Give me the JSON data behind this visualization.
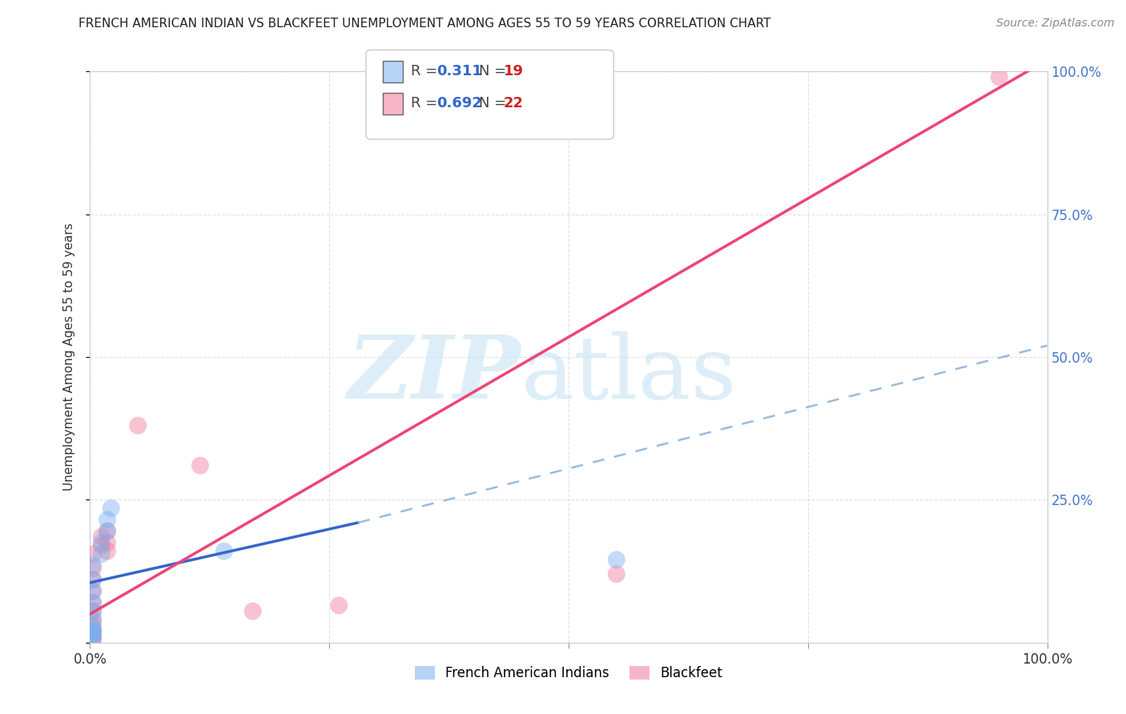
{
  "title": "FRENCH AMERICAN INDIAN VS BLACKFEET UNEMPLOYMENT AMONG AGES 55 TO 59 YEARS CORRELATION CHART",
  "source": "Source: ZipAtlas.com",
  "ylabel": "Unemployment Among Ages 55 to 59 years",
  "xlim": [
    0,
    1
  ],
  "ylim": [
    0,
    1
  ],
  "xticks": [
    0,
    0.25,
    0.5,
    0.75,
    1.0
  ],
  "yticks": [
    0,
    0.25,
    0.5,
    0.75,
    1.0
  ],
  "xticklabels": [
    "0.0%",
    "",
    "",
    "",
    "100.0%"
  ],
  "yticklabels_right": [
    "",
    "25.0%",
    "50.0%",
    "75.0%",
    "100.0%"
  ],
  "legend_R_values": [
    "0.311",
    "0.692"
  ],
  "legend_N_values": [
    "19",
    "22"
  ],
  "blue_color": "#7aaff0",
  "pink_color": "#f07a9a",
  "blue_scatter": [
    [
      0.003,
      0.005
    ],
    [
      0.003,
      0.01
    ],
    [
      0.003,
      0.015
    ],
    [
      0.003,
      0.02
    ],
    [
      0.003,
      0.025
    ],
    [
      0.003,
      0.04
    ],
    [
      0.003,
      0.055
    ],
    [
      0.003,
      0.07
    ],
    [
      0.003,
      0.09
    ],
    [
      0.003,
      0.11
    ],
    [
      0.003,
      0.135
    ],
    [
      0.012,
      0.155
    ],
    [
      0.012,
      0.175
    ],
    [
      0.018,
      0.195
    ],
    [
      0.018,
      0.215
    ],
    [
      0.022,
      0.235
    ],
    [
      0.14,
      0.16
    ],
    [
      0.55,
      0.145
    ],
    [
      0.003,
      0.02
    ]
  ],
  "pink_scatter": [
    [
      0.003,
      0.005
    ],
    [
      0.003,
      0.01
    ],
    [
      0.003,
      0.02
    ],
    [
      0.003,
      0.03
    ],
    [
      0.003,
      0.04
    ],
    [
      0.003,
      0.055
    ],
    [
      0.003,
      0.07
    ],
    [
      0.003,
      0.09
    ],
    [
      0.003,
      0.11
    ],
    [
      0.003,
      0.13
    ],
    [
      0.003,
      0.155
    ],
    [
      0.012,
      0.17
    ],
    [
      0.012,
      0.185
    ],
    [
      0.018,
      0.16
    ],
    [
      0.018,
      0.175
    ],
    [
      0.018,
      0.195
    ],
    [
      0.05,
      0.38
    ],
    [
      0.115,
      0.31
    ],
    [
      0.17,
      0.055
    ],
    [
      0.26,
      0.065
    ],
    [
      0.55,
      0.12
    ],
    [
      0.95,
      0.99
    ]
  ],
  "blue_line_solid": {
    "x0": 0.0,
    "y0": 0.105,
    "x1": 0.28,
    "y1": 0.21
  },
  "blue_line_dashed": {
    "x0": 0.28,
    "y0": 0.21,
    "x1": 1.0,
    "y1": 0.52
  },
  "pink_line": {
    "x0": 0.0,
    "y0": 0.05,
    "x1": 1.0,
    "y1": 1.02
  },
  "background_color": "#ffffff",
  "grid_color": "#cccccc",
  "tick_color": "#4477cc",
  "title_color": "#222222",
  "source_color": "#888888"
}
